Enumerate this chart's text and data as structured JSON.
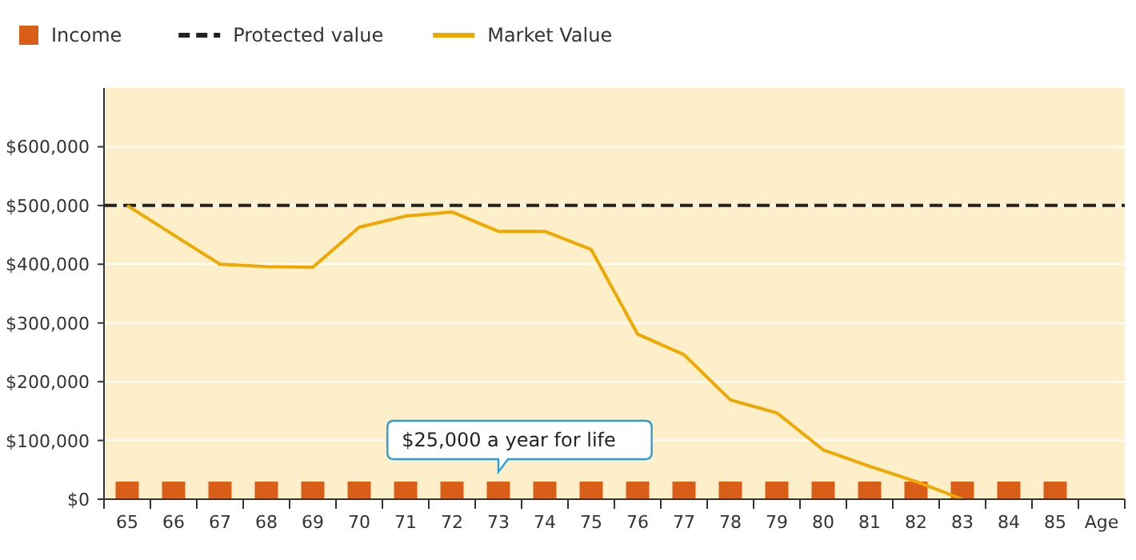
{
  "chart_data": {
    "type": "bar",
    "xlabel": "Age",
    "categories": [
      "65",
      "66",
      "67",
      "68",
      "69",
      "70",
      "71",
      "72",
      "73",
      "74",
      "75",
      "76",
      "77",
      "78",
      "79",
      "80",
      "81",
      "82",
      "83",
      "84",
      "85"
    ],
    "series": [
      {
        "name": "Income",
        "color": "#d95f18",
        "values": [
          30000,
          30000,
          30000,
          30000,
          30000,
          30000,
          30000,
          30000,
          30000,
          30000,
          30000,
          30000,
          30000,
          30000,
          30000,
          30000,
          30000,
          30000,
          30000,
          30000,
          30000
        ]
      },
      {
        "name": "Market Value",
        "type": "line",
        "color": "#f0a800",
        "values": [
          500000,
          450000,
          400000,
          396000,
          395000,
          463000,
          482000,
          489000,
          456000,
          456000,
          425000,
          281000,
          246000,
          169000,
          147000,
          84000,
          56000,
          30000,
          0,
          null,
          null
        ]
      }
    ],
    "ref_lines": [
      {
        "axis": "y",
        "value": 500000,
        "label": "Protected value",
        "color": "#222222",
        "line_style": "dashed"
      }
    ],
    "annotations": [
      {
        "text": "$25,000 a year for life",
        "x": "73",
        "y": 30000
      }
    ],
    "ylim": [
      0,
      700000
    ],
    "yticks": [
      {
        "value": 0,
        "label": "$0"
      },
      {
        "value": 100000,
        "label": "$100,000"
      },
      {
        "value": 200000,
        "label": "$200,000"
      },
      {
        "value": 300000,
        "label": "$300,000"
      },
      {
        "value": 400000,
        "label": "$400,000"
      },
      {
        "value": 500000,
        "label": "$500,000"
      },
      {
        "value": 600000,
        "label": "$600,000"
      }
    ],
    "grid": "y",
    "legend": "top left"
  }
}
